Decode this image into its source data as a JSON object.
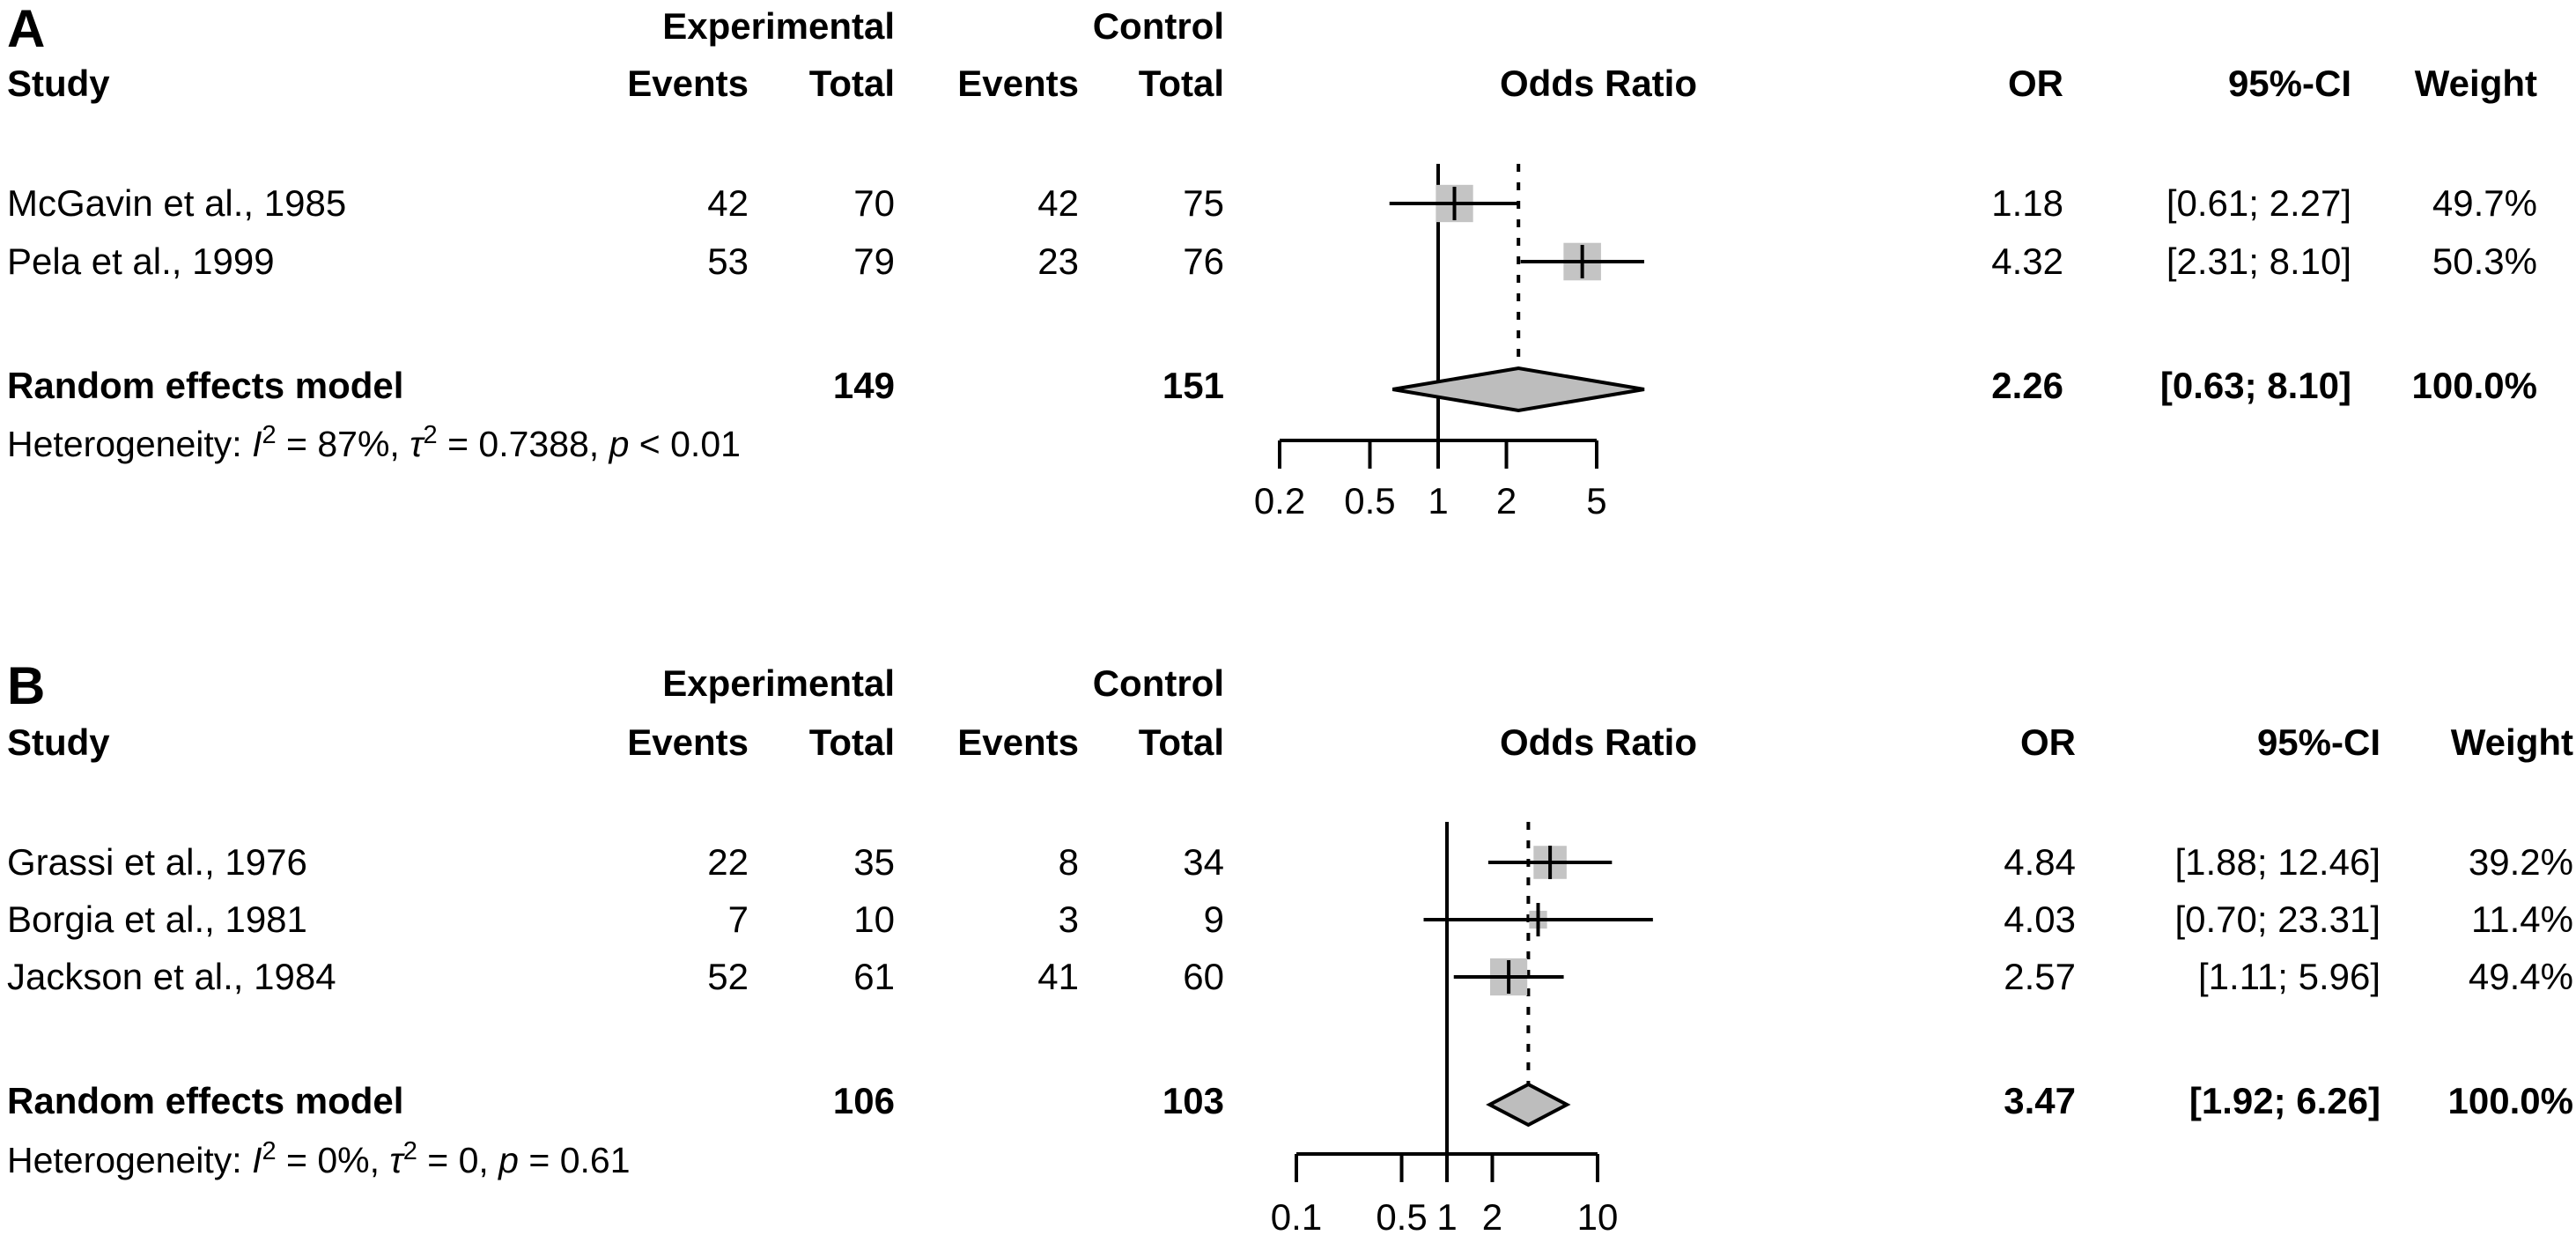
{
  "colors": {
    "background": "#ffffff",
    "text": "#000000",
    "line": "#000000",
    "square_fill": "#c4c4c4",
    "diamond_fill": "#bdbdbd"
  },
  "chart_data": [
    {
      "type": "forest",
      "panel_label": "A",
      "columns": {
        "study": "Study",
        "experimental": "Experimental",
        "control": "Control",
        "events_exp": "Events",
        "total_exp": "Total",
        "events_ctrl": "Events",
        "total_ctrl": "Total",
        "plot_title": "Odds Ratio",
        "or": "OR",
        "ci": "95%-CI",
        "weight": "Weight"
      },
      "studies": [
        {
          "name": "McGavin et al., 1985",
          "exp_events": "42",
          "exp_total": "70",
          "ctrl_events": "42",
          "ctrl_total": "75",
          "or": 1.18,
          "ci_low": 0.61,
          "ci_high": 2.27,
          "or_text": "1.18",
          "ci_text": "[0.61; 2.27]",
          "weight": 49.7,
          "weight_text": "49.7%"
        },
        {
          "name": "Pela et al., 1999",
          "exp_events": "53",
          "exp_total": "79",
          "ctrl_events": "23",
          "ctrl_total": "76",
          "or": 4.32,
          "ci_low": 2.31,
          "ci_high": 8.1,
          "or_text": "4.32",
          "ci_text": "[2.31; 8.10]",
          "weight": 50.3,
          "weight_text": "50.3%"
        }
      ],
      "summary": {
        "label": "Random effects model",
        "exp_total": "149",
        "ctrl_total": "151",
        "or": 2.26,
        "ci_low": 0.63,
        "ci_high": 8.1,
        "or_text": "2.26",
        "ci_text": "[0.63; 8.10]",
        "weight_text": "100.0%"
      },
      "heterogeneity": [
        {
          "t": "Heterogeneity: "
        },
        {
          "t": "I",
          "style": "italic"
        },
        {
          "t": "2",
          "style": "sup"
        },
        {
          "t": " = 87%, "
        },
        {
          "t": "τ",
          "style": "italic"
        },
        {
          "t": "2",
          "style": "sup"
        },
        {
          "t": " = 0.7388, "
        },
        {
          "t": "p",
          "style": "italic"
        },
        {
          "t": " < 0.01"
        }
      ],
      "axis": {
        "scale": "log",
        "min": 0.2,
        "max": 5,
        "ticks": [
          0.2,
          0.5,
          1,
          2,
          5
        ],
        "tick_labels": [
          "0.2",
          "0.5",
          "1",
          "2",
          "5"
        ],
        "ref_line": 1
      }
    },
    {
      "type": "forest",
      "panel_label": "B",
      "columns": {
        "study": "Study",
        "experimental": "Experimental",
        "control": "Control",
        "events_exp": "Events",
        "total_exp": "Total",
        "events_ctrl": "Events",
        "total_ctrl": "Total",
        "plot_title": "Odds Ratio",
        "or": "OR",
        "ci": "95%-CI",
        "weight": "Weight"
      },
      "studies": [
        {
          "name": "Grassi et al., 1976",
          "exp_events": "22",
          "exp_total": "35",
          "ctrl_events": "8",
          "ctrl_total": "34",
          "or": 4.84,
          "ci_low": 1.88,
          "ci_high": 12.46,
          "or_text": "4.84",
          "ci_text": "[1.88; 12.46]",
          "weight": 39.2,
          "weight_text": "39.2%"
        },
        {
          "name": "Borgia et al., 1981",
          "exp_events": "7",
          "exp_total": "10",
          "ctrl_events": "3",
          "ctrl_total": "9",
          "or": 4.03,
          "ci_low": 0.7,
          "ci_high": 23.31,
          "or_text": "4.03",
          "ci_text": "[0.70; 23.31]",
          "weight": 11.4,
          "weight_text": "11.4%"
        },
        {
          "name": "Jackson et al., 1984",
          "exp_events": "52",
          "exp_total": "61",
          "ctrl_events": "41",
          "ctrl_total": "60",
          "or": 2.57,
          "ci_low": 1.11,
          "ci_high": 5.96,
          "or_text": "2.57",
          "ci_text": "[1.11;  5.96]",
          "weight": 49.4,
          "weight_text": "49.4%"
        }
      ],
      "summary": {
        "label": "Random effects model",
        "exp_total": "106",
        "ctrl_total": "103",
        "or": 3.47,
        "ci_low": 1.92,
        "ci_high": 6.26,
        "or_text": "3.47",
        "ci_text": "[1.92;  6.26]",
        "weight_text": "100.0%"
      },
      "heterogeneity": [
        {
          "t": "Heterogeneity: "
        },
        {
          "t": "I",
          "style": "italic"
        },
        {
          "t": "2",
          "style": "sup"
        },
        {
          "t": " = 0%, "
        },
        {
          "t": "τ",
          "style": "italic"
        },
        {
          "t": "2",
          "style": "sup"
        },
        {
          "t": " = 0, "
        },
        {
          "t": "p",
          "style": "italic"
        },
        {
          "t": " = 0.61"
        }
      ],
      "axis": {
        "scale": "log",
        "min": 0.1,
        "max": 10,
        "ticks": [
          0.1,
          0.5,
          1,
          2,
          10
        ],
        "tick_labels": [
          "0.1",
          "0.5",
          "1",
          "2",
          "10"
        ],
        "ref_line": 1
      }
    }
  ]
}
